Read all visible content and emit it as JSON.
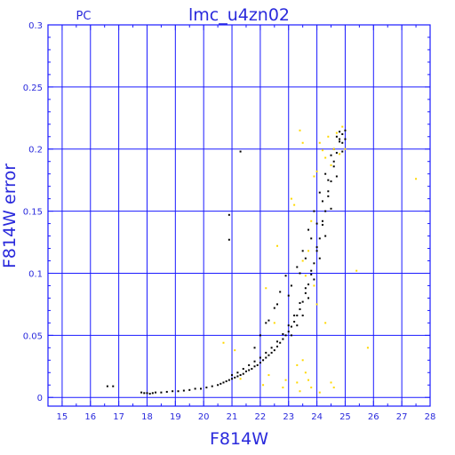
{
  "colors": {
    "frame": "#1a1aff",
    "grid": "#1a1aff",
    "text": "#2a2adc",
    "points_primary": "#000000",
    "points_secondary": "#ffd800"
  },
  "chart_data": {
    "type": "scatter",
    "title": "lmc_u4zn02",
    "subtitle": "PC",
    "xlabel": "F814W",
    "ylabel": "F814W error",
    "xlim": [
      14.5,
      28
    ],
    "ylim": [
      -0.007,
      0.3
    ],
    "xticks": [
      15,
      16,
      17,
      18,
      19,
      20,
      21,
      22,
      23,
      24,
      25,
      26,
      27,
      28
    ],
    "yticks": [
      0,
      0.05,
      0.1,
      0.15,
      0.2,
      0.25,
      0.3
    ],
    "ytick_labels": [
      "0",
      "0.05",
      "0.1",
      "0.15",
      "0.2",
      "0.25",
      "0.3"
    ],
    "grid": true,
    "series": [
      {
        "color": "#000000",
        "points": [
          [
            16.6,
            0.009
          ],
          [
            16.8,
            0.009
          ],
          [
            17.8,
            0.004
          ],
          [
            17.9,
            0.0035
          ],
          [
            18.0,
            0.0035
          ],
          [
            18.1,
            0.003
          ],
          [
            18.2,
            0.0035
          ],
          [
            18.3,
            0.004
          ],
          [
            18.5,
            0.004
          ],
          [
            18.7,
            0.0045
          ],
          [
            18.9,
            0.005
          ],
          [
            19.1,
            0.005
          ],
          [
            19.3,
            0.0055
          ],
          [
            19.5,
            0.006
          ],
          [
            19.7,
            0.007
          ],
          [
            19.9,
            0.007
          ],
          [
            20.1,
            0.008
          ],
          [
            20.3,
            0.009
          ],
          [
            20.5,
            0.01
          ],
          [
            20.6,
            0.011
          ],
          [
            20.7,
            0.012
          ],
          [
            20.8,
            0.013
          ],
          [
            20.9,
            0.014
          ],
          [
            21.0,
            0.015
          ],
          [
            21.1,
            0.016
          ],
          [
            21.2,
            0.017
          ],
          [
            21.3,
            0.018
          ],
          [
            21.4,
            0.019
          ],
          [
            21.5,
            0.021
          ],
          [
            21.6,
            0.022
          ],
          [
            21.7,
            0.023
          ],
          [
            21.8,
            0.025
          ],
          [
            21.9,
            0.026
          ],
          [
            22.0,
            0.028
          ],
          [
            22.1,
            0.03
          ],
          [
            22.2,
            0.032
          ],
          [
            22.3,
            0.034
          ],
          [
            22.4,
            0.036
          ],
          [
            22.5,
            0.038
          ],
          [
            22.6,
            0.041
          ],
          [
            22.7,
            0.044
          ],
          [
            22.8,
            0.047
          ],
          [
            22.9,
            0.05
          ],
          [
            23.0,
            0.053
          ],
          [
            23.1,
            0.057
          ],
          [
            23.2,
            0.061
          ],
          [
            23.3,
            0.066
          ],
          [
            23.4,
            0.071
          ],
          [
            23.5,
            0.077
          ],
          [
            23.6,
            0.084
          ],
          [
            23.7,
            0.091
          ],
          [
            23.8,
            0.099
          ],
          [
            23.9,
            0.108
          ],
          [
            24.0,
            0.118
          ],
          [
            24.1,
            0.128
          ],
          [
            24.2,
            0.139
          ],
          [
            24.3,
            0.15
          ],
          [
            24.4,
            0.162
          ],
          [
            24.5,
            0.174
          ],
          [
            24.6,
            0.186
          ],
          [
            24.7,
            0.197
          ],
          [
            24.8,
            0.206
          ],
          [
            24.9,
            0.212
          ],
          [
            25.0,
            0.215
          ],
          [
            21.0,
            0.018
          ],
          [
            21.2,
            0.02
          ],
          [
            21.4,
            0.023
          ],
          [
            21.6,
            0.026
          ],
          [
            21.8,
            0.029
          ],
          [
            22.0,
            0.032
          ],
          [
            22.2,
            0.036
          ],
          [
            22.4,
            0.04
          ],
          [
            22.6,
            0.045
          ],
          [
            22.8,
            0.051
          ],
          [
            23.0,
            0.058
          ],
          [
            23.2,
            0.066
          ],
          [
            23.4,
            0.076
          ],
          [
            23.6,
            0.088
          ],
          [
            23.8,
            0.102
          ],
          [
            24.0,
            0.121
          ],
          [
            24.2,
            0.142
          ],
          [
            24.4,
            0.166
          ],
          [
            24.6,
            0.19
          ],
          [
            24.8,
            0.208
          ],
          [
            20.9,
            0.147
          ],
          [
            21.3,
            0.198
          ],
          [
            20.9,
            0.127
          ],
          [
            22.2,
            0.06
          ],
          [
            22.5,
            0.072
          ],
          [
            22.7,
            0.085
          ],
          [
            22.9,
            0.098
          ],
          [
            23.1,
            0.09
          ],
          [
            23.3,
            0.105
          ],
          [
            23.5,
            0.118
          ],
          [
            23.7,
            0.135
          ],
          [
            23.9,
            0.15
          ],
          [
            24.1,
            0.165
          ],
          [
            24.3,
            0.18
          ],
          [
            24.5,
            0.195
          ],
          [
            24.7,
            0.21
          ],
          [
            22.0,
            0.05
          ],
          [
            21.8,
            0.04
          ],
          [
            22.3,
            0.062
          ],
          [
            22.6,
            0.075
          ],
          [
            23.0,
            0.082
          ],
          [
            23.4,
            0.1
          ],
          [
            23.6,
            0.112
          ],
          [
            23.8,
            0.128
          ],
          [
            24.0,
            0.14
          ],
          [
            24.2,
            0.158
          ],
          [
            24.4,
            0.175
          ],
          [
            24.6,
            0.2
          ],
          [
            24.8,
            0.214
          ],
          [
            24.9,
            0.205
          ],
          [
            23.1,
            0.05
          ],
          [
            23.3,
            0.058
          ],
          [
            23.5,
            0.066
          ],
          [
            23.7,
            0.08
          ],
          [
            23.9,
            0.095
          ],
          [
            24.1,
            0.112
          ],
          [
            24.3,
            0.13
          ],
          [
            24.5,
            0.152
          ],
          [
            24.7,
            0.178
          ],
          [
            24.9,
            0.198
          ],
          [
            25.0,
            0.208
          ]
        ]
      },
      {
        "color": "#ffd800",
        "points": [
          [
            20.7,
            0.044
          ],
          [
            21.1,
            0.038
          ],
          [
            21.3,
            0.015
          ],
          [
            22.1,
            0.01
          ],
          [
            22.3,
            0.018
          ],
          [
            22.6,
            0.122
          ],
          [
            22.2,
            0.088
          ],
          [
            22.5,
            0.06
          ],
          [
            22.8,
            0.008
          ],
          [
            22.9,
            0.014
          ],
          [
            23.1,
            0.16
          ],
          [
            23.2,
            0.155
          ],
          [
            23.3,
            0.026
          ],
          [
            23.3,
            0.012
          ],
          [
            23.4,
            0.005
          ],
          [
            23.5,
            0.03
          ],
          [
            23.6,
            0.02
          ],
          [
            23.7,
            0.014
          ],
          [
            23.8,
            0.008
          ],
          [
            23.5,
            0.11
          ],
          [
            23.6,
            0.098
          ],
          [
            23.7,
            0.118
          ],
          [
            23.8,
            0.142
          ],
          [
            23.9,
            0.178
          ],
          [
            24.0,
            0.182
          ],
          [
            24.1,
            0.205
          ],
          [
            24.2,
            0.199
          ],
          [
            24.3,
            0.193
          ],
          [
            24.4,
            0.21
          ],
          [
            24.5,
            0.187
          ],
          [
            24.6,
            0.2
          ],
          [
            24.7,
            0.213
          ],
          [
            24.8,
            0.196
          ],
          [
            24.9,
            0.218
          ],
          [
            25.0,
            0.2
          ],
          [
            24.3,
            0.06
          ],
          [
            24.5,
            0.012
          ],
          [
            24.6,
            0.008
          ],
          [
            24.1,
            0.004
          ],
          [
            25.4,
            0.102
          ],
          [
            25.8,
            0.04
          ],
          [
            27.5,
            0.176
          ],
          [
            23.9,
            0.09
          ],
          [
            24.0,
            0.075
          ],
          [
            23.4,
            0.215
          ],
          [
            23.5,
            0.205
          ]
        ]
      }
    ]
  }
}
